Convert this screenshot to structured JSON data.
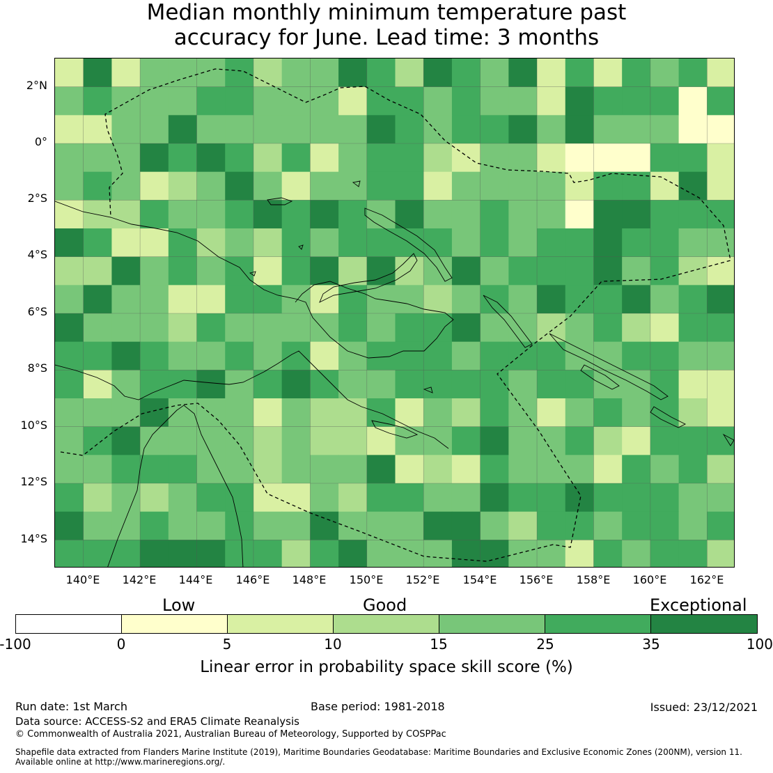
{
  "title": {
    "line1": "Median monthly minimum temperature past",
    "line2": "accuracy for June. Lead time: 3 months"
  },
  "map": {
    "lat_ticks": [
      "2°N",
      "0°",
      "2°S",
      "4°S",
      "6°S",
      "8°S",
      "10°S",
      "12°S",
      "14°S"
    ],
    "lon_ticks": [
      "140°E",
      "142°E",
      "144°E",
      "146°E",
      "148°E",
      "150°E",
      "152°E",
      "154°E",
      "156°E",
      "158°E",
      "160°E",
      "162°E"
    ],
    "lon_range": [
      139,
      163
    ],
    "lat_range": [
      -15,
      3
    ],
    "grid_cell_degrees": 1,
    "gridlines": true,
    "coastline_color": "#000000",
    "eez_boundary_style": "dashed"
  },
  "legend": {
    "categories": [
      "Low",
      "Good",
      "Exceptional"
    ],
    "bins": [
      {
        "from": -100,
        "to": 0,
        "color": "#ffffff"
      },
      {
        "from": 0,
        "to": 5,
        "color": "#ffffcc"
      },
      {
        "from": 5,
        "to": 10,
        "color": "#d9f0a3"
      },
      {
        "from": 10,
        "to": 15,
        "color": "#addd8e"
      },
      {
        "from": 15,
        "to": 25,
        "color": "#78c679"
      },
      {
        "from": 25,
        "to": 35,
        "color": "#41ab5d"
      },
      {
        "from": 35,
        "to": 100,
        "color": "#238443"
      }
    ],
    "tick_labels": [
      "-100",
      "0",
      "5",
      "10",
      "15",
      "25",
      "35",
      "100"
    ],
    "title": "Linear error in probability space skill score (%)"
  },
  "footer": {
    "run_date": "Run date: 1st March",
    "base_period": "Base period: 1981-2018",
    "issued": "Issued: 23/12/2021",
    "data_source": "Data source: ACCESS-S2 and ERA5 Climate Reanalysis",
    "copyright": "© Commonwealth of Australia 2021, Australian Bureau of Meteorology, Supported by COSPPac",
    "shapefile_line1": "Shapefile data extracted from Flanders Marine Institute (2019), Maritime Boundaries Geodatabase: Maritime Boundaries and Exclusive Economic Zones (200NM), version 11.",
    "shapefile_line2": "Available online at http://www.marineregions.org/."
  }
}
